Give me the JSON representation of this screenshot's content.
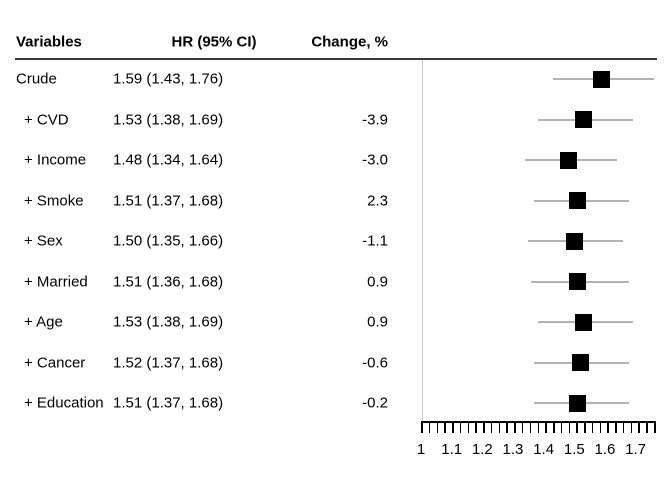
{
  "table": {
    "headers": [
      "Variables",
      "HR (95% CI)",
      "Change, %"
    ],
    "rows": [
      {
        "label": "Crude",
        "hr_text": "1.59 (1.43, 1.76)",
        "change": ""
      },
      {
        "label": "+ CVD",
        "hr_text": "1.53 (1.38, 1.69)",
        "change": "-3.9"
      },
      {
        "label": "+ Income",
        "hr_text": "1.48 (1.34, 1.64)",
        "change": "-3.0"
      },
      {
        "label": "+ Smoke",
        "hr_text": "1.51 (1.37, 1.68)",
        "change": "2.3"
      },
      {
        "label": "+ Sex",
        "hr_text": "1.50 (1.35, 1.66)",
        "change": "-1.1"
      },
      {
        "label": "+ Married",
        "hr_text": "1.51 (1.36, 1.68)",
        "change": "0.9"
      },
      {
        "label": "+ Age",
        "hr_text": "1.53 (1.38, 1.69)",
        "change": "0.9"
      },
      {
        "label": "+ Cancer",
        "hr_text": "1.52 (1.37, 1.68)",
        "change": "-0.6"
      },
      {
        "label": "+ Education",
        "hr_text": "1.51 (1.37, 1.68)",
        "change": "-0.2"
      }
    ]
  },
  "chart_data": {
    "type": "scatter",
    "subtype": "forest-plot",
    "title": "",
    "xlabel": "",
    "ylabel": "",
    "categories": [
      "Crude",
      "+ CVD",
      "+ Income",
      "+ Smoke",
      "+ Sex",
      "+ Married",
      "+ Age",
      "+ Cancer",
      "+ Education"
    ],
    "series": [
      {
        "name": "HR",
        "values": [
          1.59,
          1.53,
          1.48,
          1.51,
          1.5,
          1.51,
          1.53,
          1.52,
          1.51
        ]
      },
      {
        "name": "CI lower",
        "values": [
          1.43,
          1.38,
          1.34,
          1.37,
          1.35,
          1.36,
          1.38,
          1.37,
          1.37
        ]
      },
      {
        "name": "CI upper",
        "values": [
          1.76,
          1.69,
          1.64,
          1.68,
          1.66,
          1.68,
          1.69,
          1.68,
          1.68
        ]
      },
      {
        "name": "Change %",
        "values": [
          null,
          -3.9,
          -3.0,
          2.3,
          -1.1,
          0.9,
          0.9,
          -0.6,
          -0.2
        ]
      }
    ],
    "xlim": [
      1.0,
      1.76
    ],
    "x_tick_values": [
      1,
      1.1,
      1.2,
      1.3,
      1.4,
      1.5,
      1.6,
      1.7
    ],
    "x_tick_labels": [
      "1",
      "1.1",
      "1.2",
      "1.3",
      "1.4",
      "1.5",
      "1.6",
      "1.7"
    ],
    "minor_tick_count": 31,
    "reference_value": 1.0,
    "marker": "square",
    "grid": false,
    "legend": false
  },
  "colors": {
    "marker": "#000000",
    "ci_line": "#b3b3b3",
    "reference_line": "#c9c9c9",
    "header_rule": "#3d3d3d",
    "axis": "#000000",
    "text": "#000000",
    "background": "#ffffff"
  }
}
